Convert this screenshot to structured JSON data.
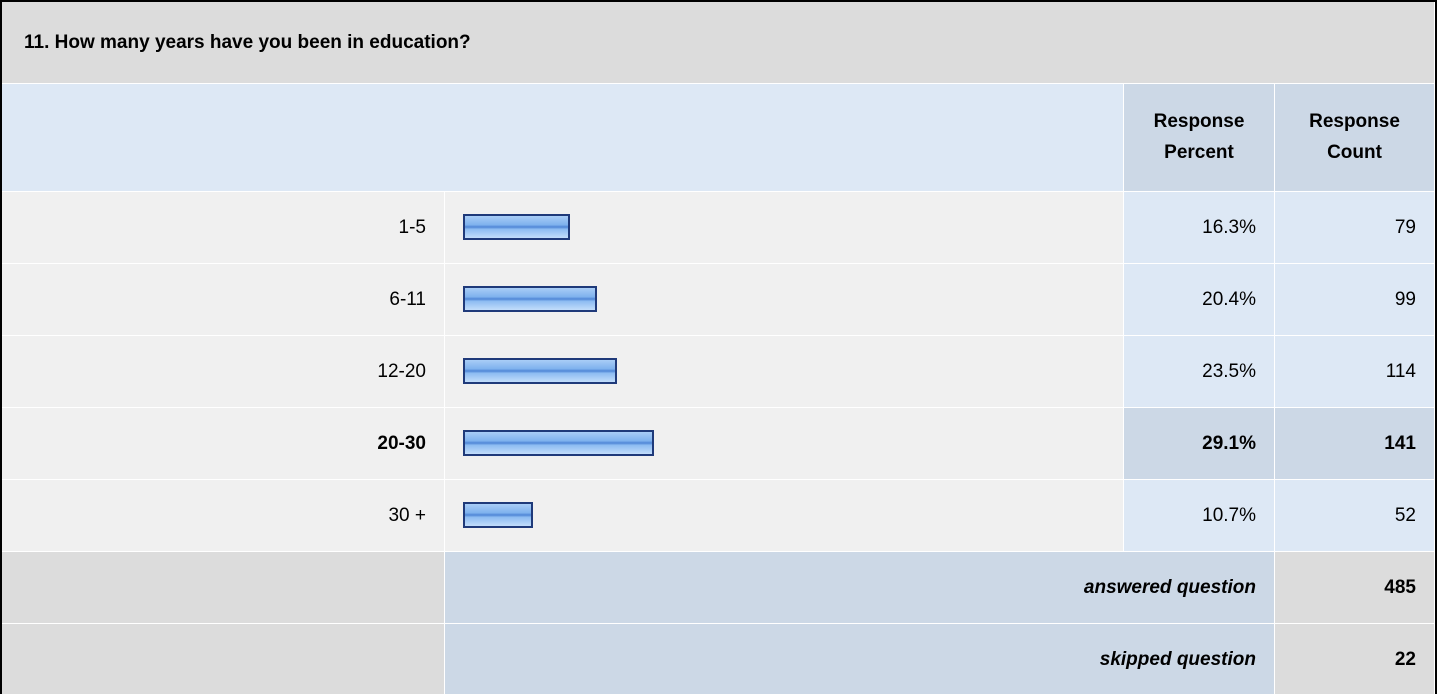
{
  "question": "11. How many years have you been in education?",
  "headers": {
    "percent": "Response\nPercent",
    "count": "Response\nCount"
  },
  "rows": [
    {
      "label": "1-5",
      "percent": 16.3,
      "percent_label": "16.3%",
      "count": 79
    },
    {
      "label": "6-11",
      "percent": 20.4,
      "percent_label": "20.4%",
      "count": 99
    },
    {
      "label": "12-20",
      "percent": 23.5,
      "percent_label": "23.5%",
      "count": 114
    },
    {
      "label": "20-30",
      "percent": 29.1,
      "percent_label": "29.1%",
      "count": 141
    },
    {
      "label": "30 +",
      "percent": 10.7,
      "percent_label": "10.7%",
      "count": 52
    }
  ],
  "answered": {
    "label": "answered question",
    "count": 485
  },
  "skipped": {
    "label": "skipped question",
    "count": 22
  }
}
